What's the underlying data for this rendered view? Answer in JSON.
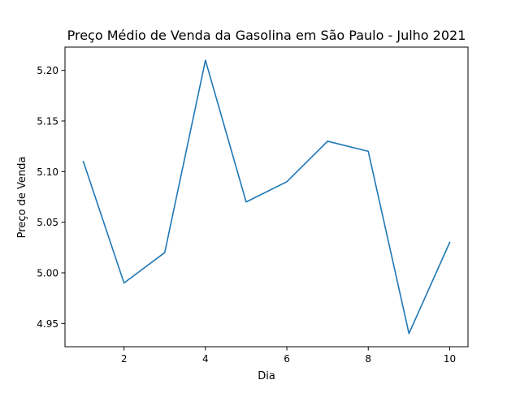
{
  "chart_data": {
    "type": "line",
    "title": "Preço Médio de Venda da Gasolina em São Paulo - Julho 2021",
    "xlabel": "Dia",
    "ylabel": "Preço de Venda",
    "xlim": [
      0.55,
      10.45
    ],
    "ylim": [
      4.927,
      5.223
    ],
    "xticks": [
      2,
      4,
      6,
      8,
      10
    ],
    "xtick_labels": [
      "2",
      "4",
      "6",
      "8",
      "10"
    ],
    "yticks": [
      4.95,
      5.0,
      5.05,
      5.1,
      5.15,
      5.2
    ],
    "ytick_labels": [
      "4.95",
      "5.00",
      "5.05",
      "5.10",
      "5.15",
      "5.20"
    ],
    "grid": false,
    "series": [
      {
        "color": "#1f77b4",
        "x": [
          1,
          2,
          3,
          4,
          5,
          6,
          7,
          8,
          9,
          10
        ],
        "y": [
          5.11,
          4.99,
          5.02,
          5.21,
          5.07,
          5.09,
          5.13,
          5.12,
          4.94,
          5.03
        ]
      }
    ]
  }
}
